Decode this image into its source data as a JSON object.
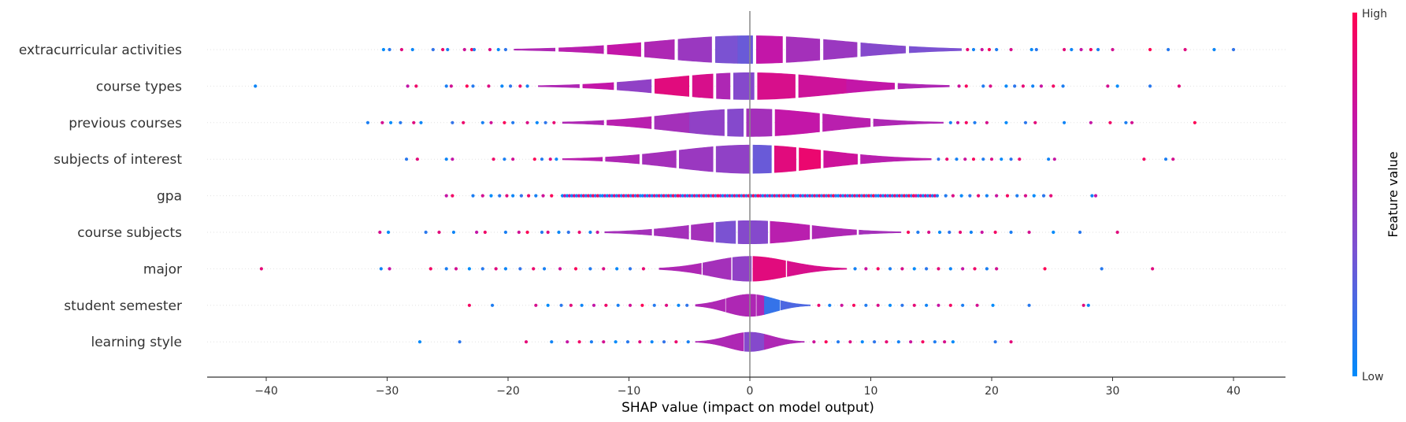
{
  "chart_data": {
    "type": "scatter",
    "subtype": "shap-violin-summary",
    "title": "",
    "xlabel": "SHAP value (impact on model output)",
    "ylabel": "",
    "xlim": [
      -45,
      44
    ],
    "xticks": [
      -40,
      -30,
      -20,
      -10,
      0,
      10,
      20,
      30,
      40
    ],
    "grid": false,
    "features": [
      {
        "name": "extracurricular activities",
        "range": [
          -30.3,
          40.0
        ],
        "body": [
          -19.5,
          17.5
        ],
        "peak": 0.98,
        "segments": [
          [
            -19.5,
            0.6
          ],
          [
            -16,
            0.65
          ],
          [
            -12,
            0.7
          ],
          [
            -9,
            0.6
          ],
          [
            -6,
            0.5
          ],
          [
            -3,
            0.35
          ],
          [
            -1,
            0.3
          ],
          [
            0.5,
            0.7
          ],
          [
            3,
            0.55
          ],
          [
            6,
            0.5
          ],
          [
            9,
            0.4
          ],
          [
            13,
            0.35
          ],
          [
            17.5,
            0.35
          ]
        ],
        "outliers": [
          -30.3,
          -29.8,
          -28.8,
          -27.9,
          -26.2,
          -25.4,
          -25.0,
          -23.6,
          -23.0,
          -22.8,
          -21.5,
          -20.8,
          -20.2,
          18.0,
          18.5,
          19.2,
          19.8,
          20.4,
          21.6,
          23.3,
          23.7,
          26.0,
          26.6,
          27.4,
          28.2,
          28.8,
          30.0,
          33.1,
          34.6,
          36.0,
          38.4,
          40.0
        ]
      },
      {
        "name": "course types",
        "range": [
          -40.9,
          35.5
        ],
        "body": [
          -17.5,
          16.5
        ],
        "peak": 0.95,
        "segments": [
          [
            -17.5,
            0.6
          ],
          [
            -14,
            0.7
          ],
          [
            -11,
            0.45
          ],
          [
            -8,
            0.85
          ],
          [
            -5,
            0.8
          ],
          [
            -3,
            0.6
          ],
          [
            -1.5,
            0.4
          ],
          [
            0.5,
            0.8
          ],
          [
            4,
            0.75
          ],
          [
            8,
            0.7
          ],
          [
            12,
            0.6
          ],
          [
            16.5,
            0.55
          ]
        ],
        "outliers": [
          -40.9,
          -28.3,
          -27.6,
          -25.1,
          -24.7,
          -23.4,
          -22.9,
          -21.6,
          -20.5,
          -19.8,
          -19.0,
          -18.4,
          17.3,
          17.9,
          19.3,
          19.9,
          21.2,
          21.9,
          22.6,
          23.4,
          24.1,
          25.1,
          25.9,
          29.6,
          30.4,
          33.1,
          35.5
        ]
      },
      {
        "name": "previous courses",
        "range": [
          -31.6,
          36.8
        ],
        "body": [
          -15.5,
          16.0
        ],
        "peak": 0.98,
        "segments": [
          [
            -15.5,
            0.6
          ],
          [
            -12,
            0.65
          ],
          [
            -8,
            0.55
          ],
          [
            -5,
            0.45
          ],
          [
            -2,
            0.4
          ],
          [
            -0.5,
            0.55
          ],
          [
            2,
            0.7
          ],
          [
            6,
            0.65
          ],
          [
            10,
            0.6
          ],
          [
            16,
            0.55
          ]
        ],
        "outliers": [
          -31.6,
          -30.4,
          -29.7,
          -28.9,
          -27.8,
          -27.2,
          -24.6,
          -23.7,
          -22.1,
          -21.4,
          -20.3,
          -19.6,
          -18.4,
          -17.6,
          -16.9,
          -16.2,
          16.6,
          17.2,
          17.9,
          18.6,
          19.6,
          21.2,
          22.8,
          23.6,
          26.0,
          28.2,
          29.8,
          31.1,
          31.6,
          36.8
        ]
      },
      {
        "name": "subjects of interest",
        "range": [
          -28.4,
          35.0
        ],
        "body": [
          -15.5,
          15.0
        ],
        "peak": 1.0,
        "segments": [
          [
            -15.5,
            0.65
          ],
          [
            -12,
            0.6
          ],
          [
            -9,
            0.55
          ],
          [
            -6,
            0.5
          ],
          [
            -3,
            0.45
          ],
          [
            0.2,
            0.3
          ],
          [
            2,
            0.85
          ],
          [
            4,
            0.9
          ],
          [
            6,
            0.75
          ],
          [
            9,
            0.65
          ],
          [
            15,
            0.6
          ]
        ],
        "outliers": [
          -28.4,
          -27.5,
          -25.1,
          -24.6,
          -21.2,
          -20.3,
          -19.6,
          -17.8,
          -17.2,
          -16.5,
          -16.0,
          15.6,
          16.3,
          17.1,
          17.8,
          18.5,
          19.3,
          20.0,
          20.8,
          21.6,
          22.3,
          24.7,
          25.2,
          32.6,
          34.4,
          35.0
        ]
      },
      {
        "name": "gpa",
        "range": [
          -25.1,
          28.6
        ],
        "body": [
          -15.5,
          15.5
        ],
        "peak": 0.04,
        "segments": [
          [
            -15.5,
            0.6
          ]
        ],
        "outliers": [
          -25.1,
          -24.6,
          -22.9,
          -22.1,
          -21.4,
          -20.7,
          -20.1,
          -19.6,
          -18.9,
          -18.3,
          -17.7,
          -17.1,
          -16.4,
          16.2,
          16.8,
          17.5,
          18.2,
          18.9,
          19.6,
          20.4,
          21.3,
          22.1,
          22.8,
          23.5,
          24.3,
          24.9,
          28.3,
          28.6
        ]
      },
      {
        "name": "course subjects",
        "range": [
          -30.6,
          30.4
        ],
        "body": [
          -12.0,
          12.5
        ],
        "peak": 0.82,
        "segments": [
          [
            -12,
            0.55
          ],
          [
            -8,
            0.55
          ],
          [
            -5,
            0.55
          ],
          [
            -3,
            0.35
          ],
          [
            -1,
            0.4
          ],
          [
            1.5,
            0.65
          ],
          [
            5,
            0.6
          ],
          [
            9,
            0.55
          ],
          [
            12.5,
            0.55
          ]
        ],
        "outliers": [
          -30.6,
          -29.9,
          -26.8,
          -25.7,
          -24.5,
          -22.6,
          -21.9,
          -20.2,
          -19.1,
          -18.4,
          -17.2,
          -16.7,
          -15.8,
          -15.0,
          -14.1,
          -13.2,
          -12.6,
          13.1,
          13.9,
          14.8,
          15.7,
          16.5,
          17.4,
          18.3,
          19.2,
          20.3,
          21.6,
          23.1,
          25.1,
          27.3,
          30.4
        ]
      },
      {
        "name": "major",
        "range": [
          -40.4,
          33.3
        ],
        "body": [
          -7.5,
          8.0
        ],
        "peak": 0.88,
        "segments": [
          [
            -7.5,
            0.6
          ],
          [
            -4,
            0.55
          ],
          [
            -1.5,
            0.45
          ],
          [
            0.2,
            0.85
          ],
          [
            3,
            0.8
          ],
          [
            8,
            0.7
          ]
        ],
        "outliers": [
          -40.4,
          -30.5,
          -29.8,
          -26.4,
          -25.1,
          -24.3,
          -23.2,
          -22.1,
          -21.0,
          -20.2,
          -19.0,
          -17.9,
          -17.0,
          -15.7,
          -14.4,
          -13.2,
          -12.1,
          -11.0,
          -9.9,
          -8.8,
          8.7,
          9.6,
          10.6,
          11.6,
          12.6,
          13.6,
          14.6,
          15.6,
          16.6,
          17.6,
          18.6,
          19.6,
          20.4,
          24.4,
          29.1,
          33.3
        ]
      },
      {
        "name": "student semester",
        "range": [
          -23.2,
          28.0
        ],
        "body": [
          -4.5,
          5.0
        ],
        "peak": 0.78,
        "segments": [
          [
            -4.5,
            0.6
          ],
          [
            -2,
            0.6
          ],
          [
            0.5,
            0.6
          ],
          [
            1.2,
            0.15
          ],
          [
            2.5,
            0.22
          ],
          [
            5,
            0.3
          ]
        ],
        "outliers": [
          -23.2,
          -21.3,
          -17.7,
          -16.7,
          -15.6,
          -14.8,
          -13.9,
          -12.9,
          -11.9,
          -10.9,
          -9.9,
          -8.9,
          -7.9,
          -6.9,
          -5.9,
          -5.2,
          5.7,
          6.6,
          7.6,
          8.6,
          9.6,
          10.6,
          11.6,
          12.6,
          13.6,
          14.6,
          15.6,
          16.6,
          17.6,
          18.8,
          20.1,
          23.1,
          27.6,
          28.0
        ]
      },
      {
        "name": "learning style",
        "range": [
          -27.3,
          21.6
        ],
        "body": [
          -4.5,
          4.5
        ],
        "peak": 0.68,
        "segments": [
          [
            -4.5,
            0.6
          ],
          [
            -1.5,
            0.6
          ],
          [
            -0.5,
            0.4
          ],
          [
            1.2,
            0.6
          ],
          [
            4.5,
            0.55
          ]
        ],
        "outliers": [
          -27.3,
          -24.0,
          -18.5,
          -16.4,
          -15.1,
          -14.1,
          -13.1,
          -12.1,
          -11.1,
          -10.1,
          -9.1,
          -8.1,
          -7.1,
          -6.1,
          -5.1,
          5.3,
          6.3,
          7.3,
          8.3,
          9.3,
          10.3,
          11.3,
          12.3,
          13.3,
          14.3,
          15.3,
          16.1,
          16.8,
          20.3,
          21.6
        ]
      }
    ],
    "colorbar": {
      "label": "Feature value",
      "high": "High",
      "low": "Low",
      "colors": [
        "#008bfb",
        "#7b52d2",
        "#c316a8",
        "#ff0052"
      ]
    }
  }
}
